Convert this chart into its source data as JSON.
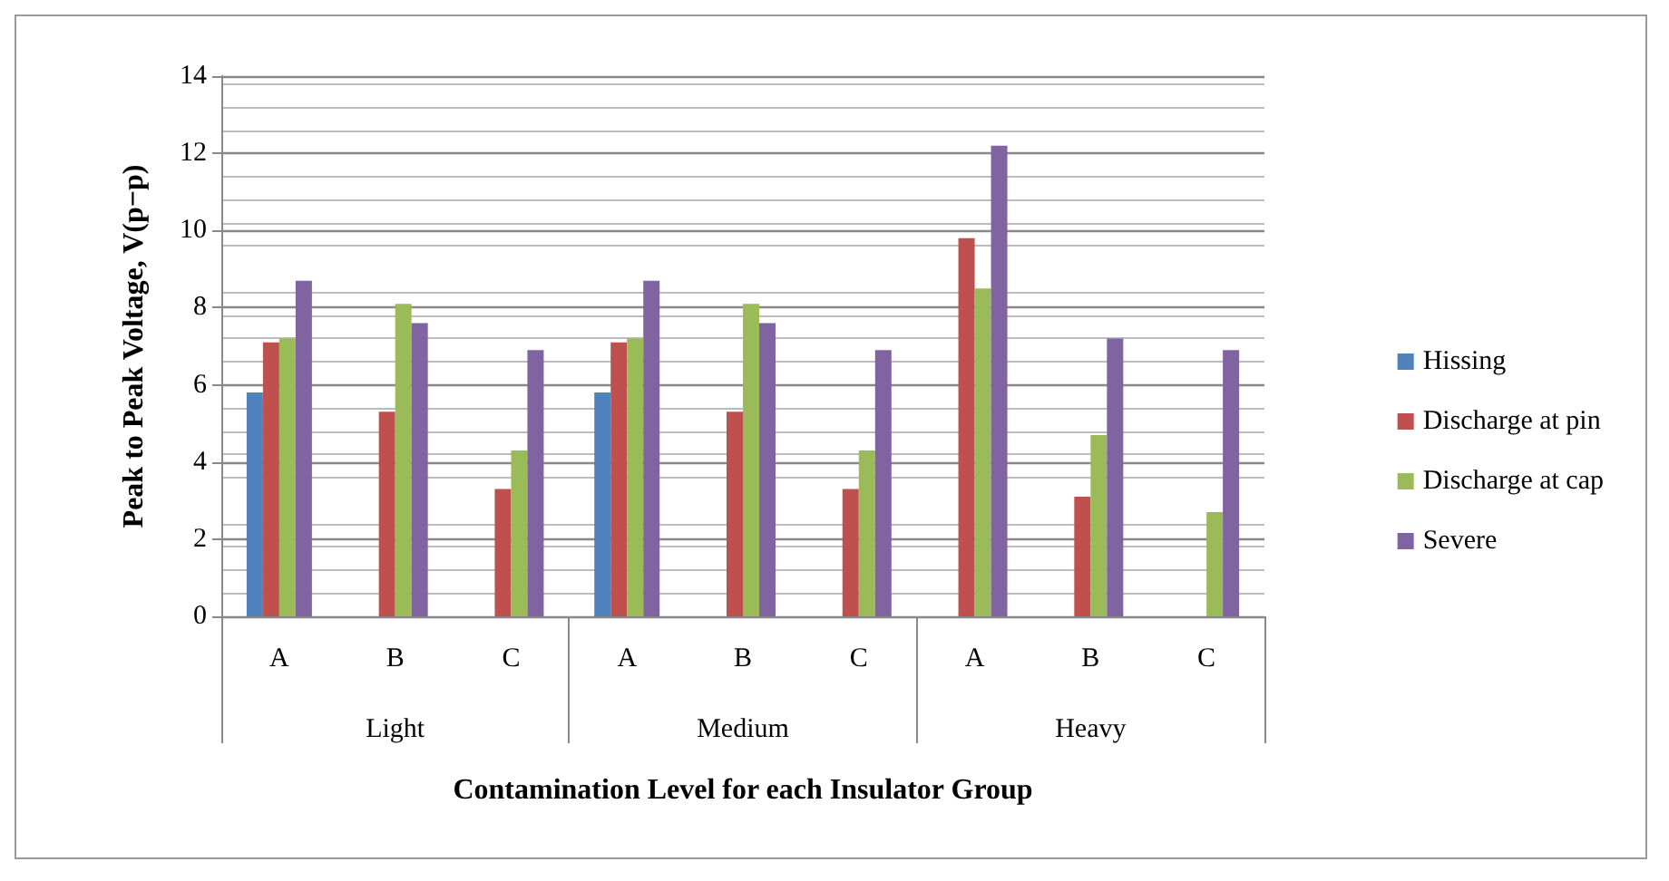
{
  "chart_data": {
    "type": "bar",
    "xlabel": "Contamination Level for each Insulator Group",
    "ylabel": "Peak to Peak Voltage, V(p−p)",
    "categories": [
      "A",
      "B",
      "C",
      "A",
      "B",
      "C",
      "A",
      "B",
      "C"
    ],
    "annotations": [
      "Light",
      "Medium",
      "Heavy"
    ],
    "series": [
      {
        "name": "Hissing",
        "color": "#4f81bd",
        "values": [
          5.8,
          null,
          null,
          5.8,
          null,
          null,
          null,
          null,
          null
        ]
      },
      {
        "name": "Discharge at pin",
        "color": "#c0504d",
        "values": [
          7.1,
          5.3,
          3.3,
          7.1,
          5.3,
          3.3,
          9.8,
          3.1,
          null
        ]
      },
      {
        "name": "Discharge at cap",
        "color": "#9bbb59",
        "values": [
          7.2,
          8.1,
          4.3,
          7.2,
          8.1,
          4.3,
          8.5,
          4.7,
          2.7
        ]
      },
      {
        "name": "Severe",
        "color": "#8064a2",
        "values": [
          8.7,
          7.6,
          6.9,
          8.7,
          7.6,
          6.9,
          12.2,
          7.2,
          6.9
        ]
      }
    ],
    "ylim": [
      0,
      14
    ],
    "yticks": [
      0,
      2,
      4,
      6,
      8,
      10,
      12,
      14
    ],
    "grid": "y",
    "legend": "right"
  }
}
